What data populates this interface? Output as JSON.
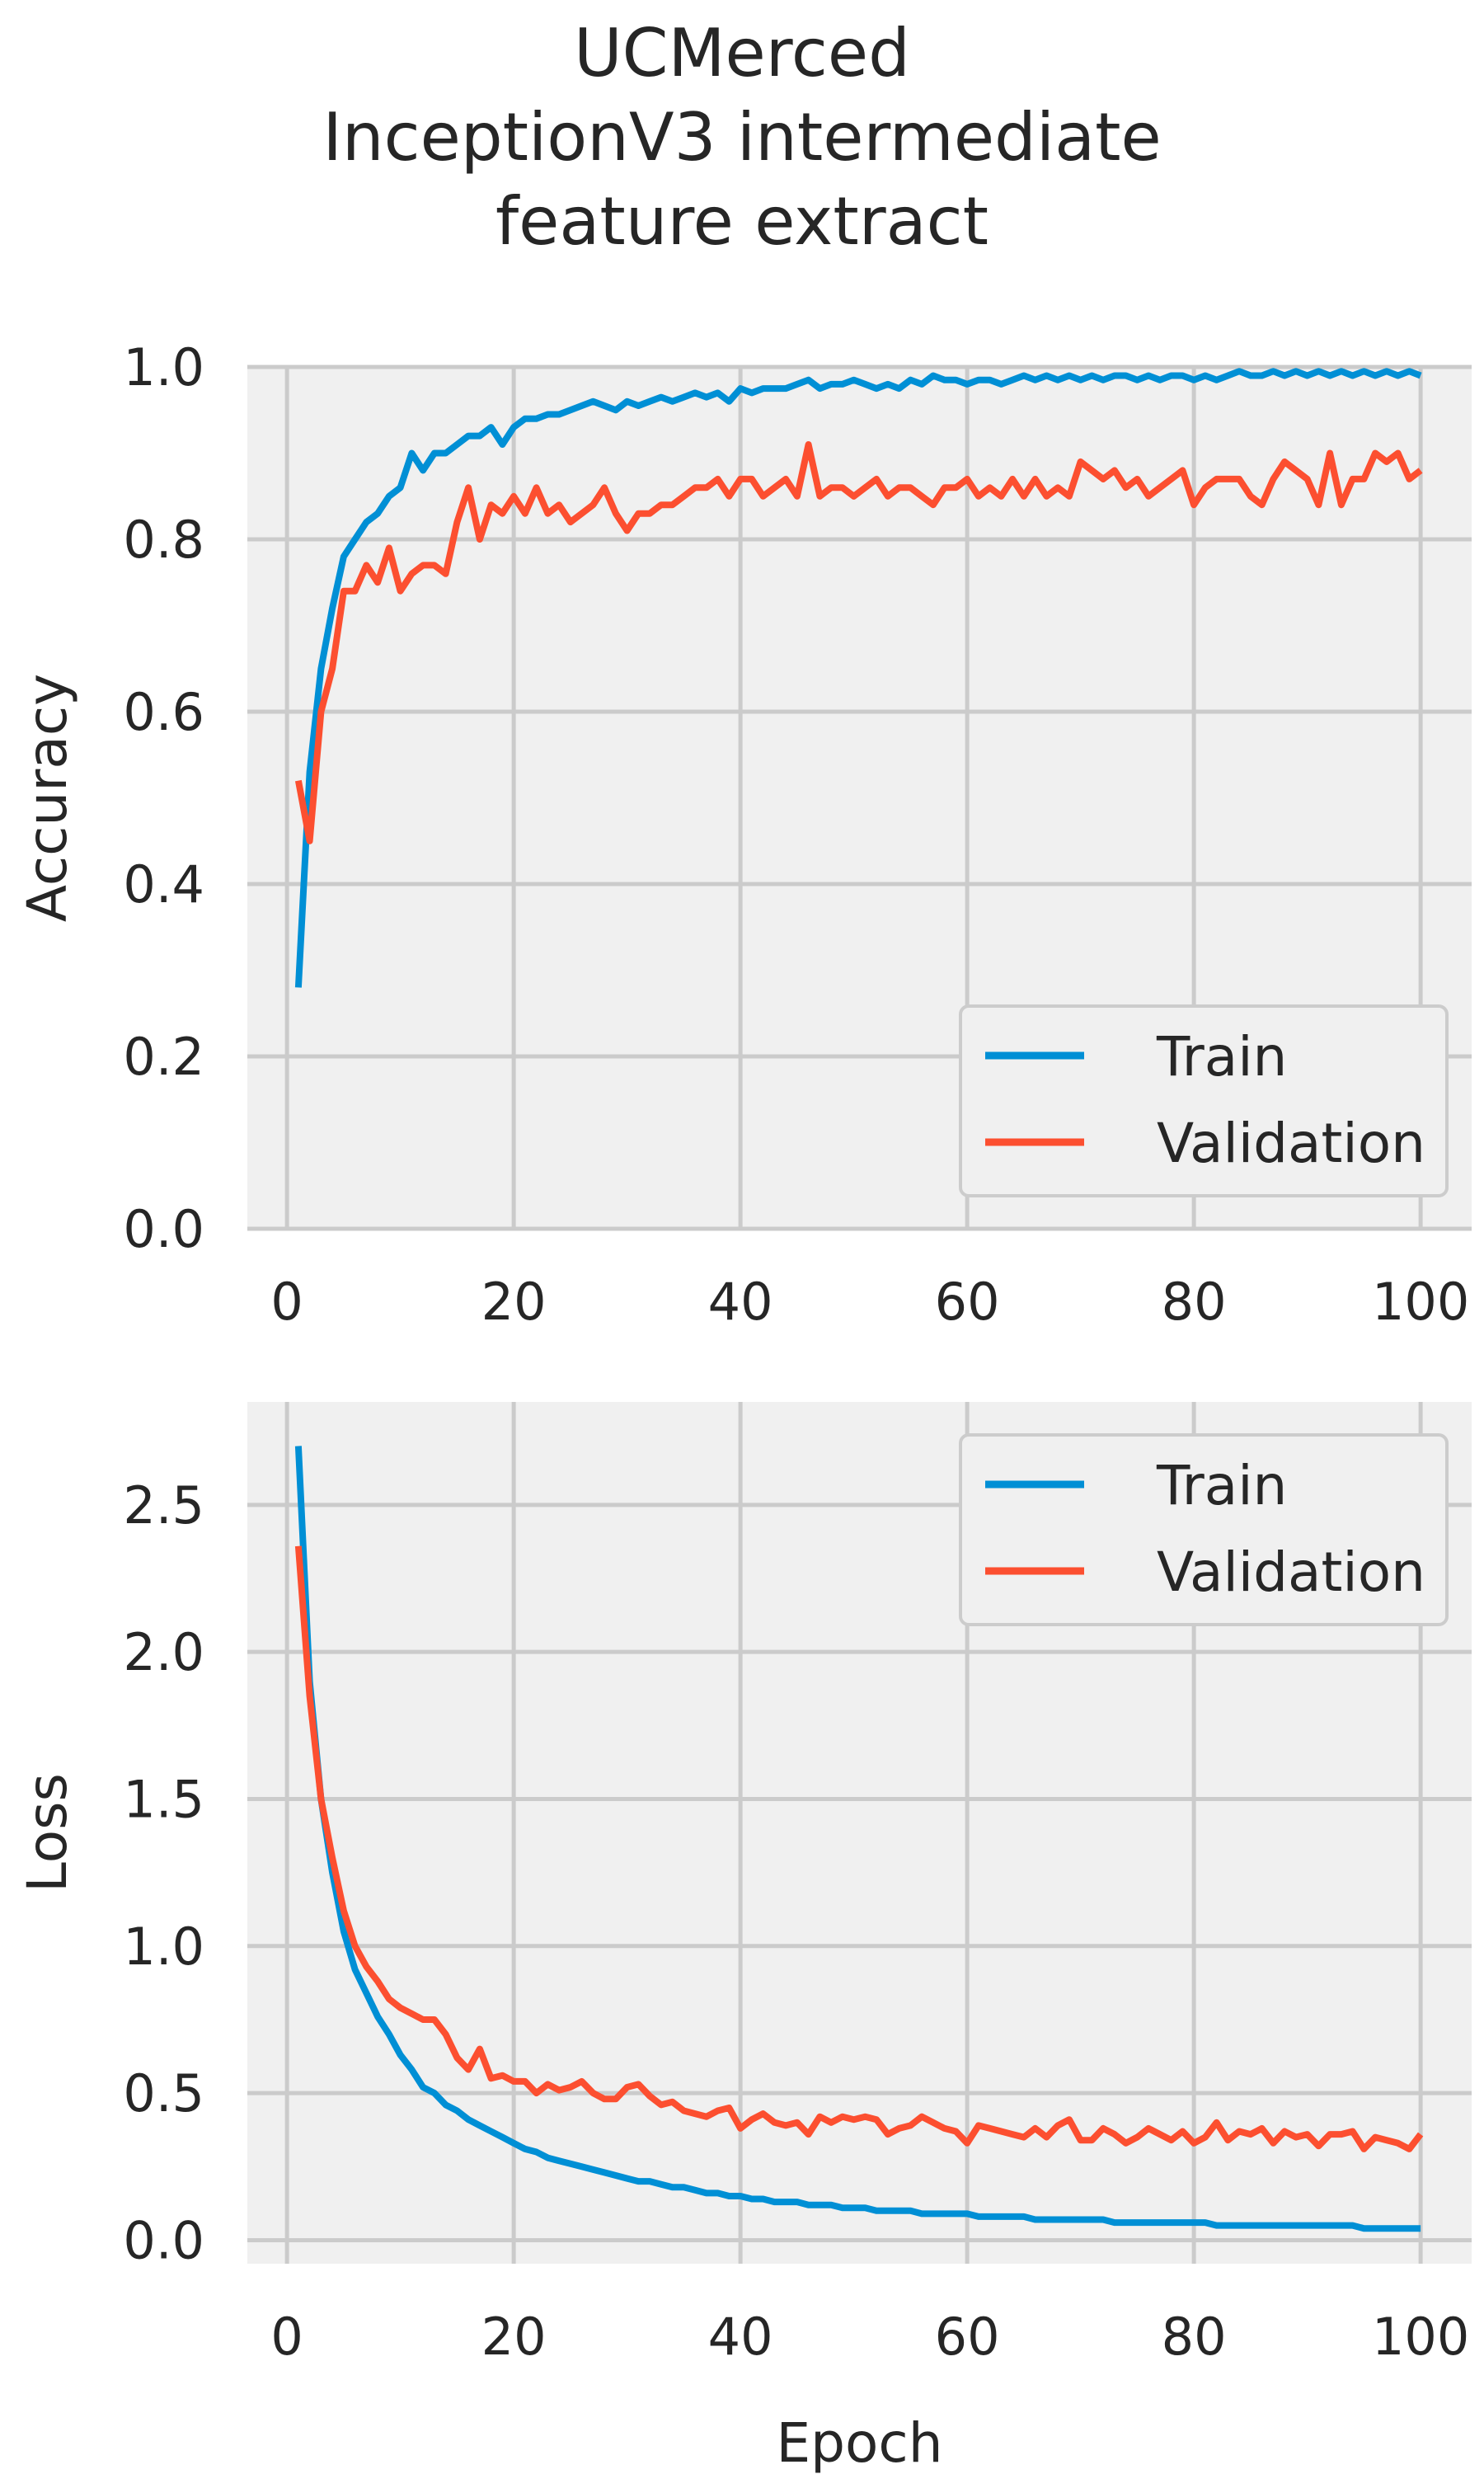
{
  "figure": {
    "title_lines": [
      "UCMerced",
      "InceptionV3 intermediate",
      "feature extract"
    ]
  },
  "chart_data": [
    {
      "type": "line",
      "title": "UCMerced InceptionV3 intermediate feature extract",
      "xlabel": "",
      "ylabel": "Accuracy",
      "xlim": [
        -3.5,
        104.5
      ],
      "ylim": [
        0.0,
        1.0
      ],
      "xticks": [
        0,
        20,
        40,
        60,
        80,
        100
      ],
      "xtick_labels": [
        "0",
        "20",
        "40",
        "60",
        "80",
        "100"
      ],
      "yticks": [
        0.0,
        0.2,
        0.4,
        0.6,
        0.8,
        1.0
      ],
      "ytick_labels": [
        "0.0",
        "0.2",
        "0.4",
        "0.6",
        "0.8",
        "1.0"
      ],
      "grid": true,
      "legend": "lower-right",
      "x": [
        1,
        2,
        3,
        4,
        5,
        6,
        7,
        8,
        9,
        10,
        11,
        12,
        13,
        14,
        15,
        16,
        17,
        18,
        19,
        20,
        21,
        22,
        23,
        24,
        25,
        26,
        27,
        28,
        29,
        30,
        31,
        32,
        33,
        34,
        35,
        36,
        37,
        38,
        39,
        40,
        41,
        42,
        43,
        44,
        45,
        46,
        47,
        48,
        49,
        50,
        51,
        52,
        53,
        54,
        55,
        56,
        57,
        58,
        59,
        60,
        61,
        62,
        63,
        64,
        65,
        66,
        67,
        68,
        69,
        70,
        71,
        72,
        73,
        74,
        75,
        76,
        77,
        78,
        79,
        80,
        81,
        82,
        83,
        84,
        85,
        86,
        87,
        88,
        89,
        90,
        91,
        92,
        93,
        94,
        95,
        96,
        97,
        98,
        99,
        100
      ],
      "series": [
        {
          "name": "Train",
          "color": "#008fd5",
          "values": [
            0.28,
            0.53,
            0.65,
            0.72,
            0.78,
            0.8,
            0.82,
            0.83,
            0.85,
            0.86,
            0.9,
            0.88,
            0.9,
            0.9,
            0.91,
            0.92,
            0.92,
            0.93,
            0.91,
            0.93,
            0.94,
            0.94,
            0.945,
            0.945,
            0.95,
            0.955,
            0.96,
            0.955,
            0.95,
            0.96,
            0.955,
            0.96,
            0.965,
            0.96,
            0.965,
            0.97,
            0.965,
            0.97,
            0.96,
            0.975,
            0.97,
            0.975,
            0.975,
            0.975,
            0.98,
            0.985,
            0.975,
            0.98,
            0.98,
            0.985,
            0.98,
            0.975,
            0.98,
            0.975,
            0.985,
            0.98,
            0.99,
            0.985,
            0.985,
            0.98,
            0.985,
            0.985,
            0.98,
            0.985,
            0.99,
            0.985,
            0.99,
            0.985,
            0.99,
            0.985,
            0.99,
            0.985,
            0.99,
            0.99,
            0.985,
            0.99,
            0.985,
            0.99,
            0.99,
            0.985,
            0.99,
            0.985,
            0.99,
            0.995,
            0.99,
            0.99,
            0.995,
            0.99,
            0.995,
            0.99,
            0.995,
            0.99,
            0.995,
            0.99,
            0.995,
            0.99,
            0.995,
            0.99,
            0.995,
            0.99
          ]
        },
        {
          "name": "Validation",
          "color": "#fc4f30",
          "values": [
            0.52,
            0.45,
            0.6,
            0.65,
            0.74,
            0.74,
            0.77,
            0.75,
            0.79,
            0.74,
            0.76,
            0.77,
            0.77,
            0.76,
            0.82,
            0.86,
            0.8,
            0.84,
            0.83,
            0.85,
            0.83,
            0.86,
            0.83,
            0.84,
            0.82,
            0.83,
            0.84,
            0.86,
            0.83,
            0.81,
            0.83,
            0.83,
            0.84,
            0.84,
            0.85,
            0.86,
            0.86,
            0.87,
            0.85,
            0.87,
            0.87,
            0.85,
            0.86,
            0.87,
            0.85,
            0.91,
            0.85,
            0.86,
            0.86,
            0.85,
            0.86,
            0.87,
            0.85,
            0.86,
            0.86,
            0.85,
            0.84,
            0.86,
            0.86,
            0.87,
            0.85,
            0.86,
            0.85,
            0.87,
            0.85,
            0.87,
            0.85,
            0.86,
            0.85,
            0.89,
            0.88,
            0.87,
            0.88,
            0.86,
            0.87,
            0.85,
            0.86,
            0.87,
            0.88,
            0.84,
            0.86,
            0.87,
            0.87,
            0.87,
            0.85,
            0.84,
            0.87,
            0.89,
            0.88,
            0.87,
            0.84,
            0.9,
            0.84,
            0.87,
            0.87,
            0.9,
            0.89,
            0.9,
            0.87,
            0.88
          ]
        }
      ]
    },
    {
      "type": "line",
      "title": "",
      "xlabel": "Epoch",
      "ylabel": "Loss",
      "xlim": [
        -3.5,
        104.5
      ],
      "ylim": [
        -0.08,
        2.85
      ],
      "xticks": [
        0,
        20,
        40,
        60,
        80,
        100
      ],
      "xtick_labels": [
        "0",
        "20",
        "40",
        "60",
        "80",
        "100"
      ],
      "yticks": [
        0.0,
        0.5,
        1.0,
        1.5,
        2.0,
        2.5
      ],
      "ytick_labels": [
        "0.0",
        "0.5",
        "1.0",
        "1.5",
        "2.0",
        "2.5"
      ],
      "grid": true,
      "legend": "upper-right",
      "x": [
        1,
        2,
        3,
        4,
        5,
        6,
        7,
        8,
        9,
        10,
        11,
        12,
        13,
        14,
        15,
        16,
        17,
        18,
        19,
        20,
        21,
        22,
        23,
        24,
        25,
        26,
        27,
        28,
        29,
        30,
        31,
        32,
        33,
        34,
        35,
        36,
        37,
        38,
        39,
        40,
        41,
        42,
        43,
        44,
        45,
        46,
        47,
        48,
        49,
        50,
        51,
        52,
        53,
        54,
        55,
        56,
        57,
        58,
        59,
        60,
        61,
        62,
        63,
        64,
        65,
        66,
        67,
        68,
        69,
        70,
        71,
        72,
        73,
        74,
        75,
        76,
        77,
        78,
        79,
        80,
        81,
        82,
        83,
        84,
        85,
        86,
        87,
        88,
        89,
        90,
        91,
        92,
        93,
        94,
        95,
        96,
        97,
        98,
        99,
        100
      ],
      "series": [
        {
          "name": "Train",
          "color": "#008fd5",
          "values": [
            2.7,
            1.9,
            1.5,
            1.25,
            1.05,
            0.92,
            0.84,
            0.76,
            0.7,
            0.63,
            0.58,
            0.52,
            0.5,
            0.46,
            0.44,
            0.41,
            0.39,
            0.37,
            0.35,
            0.33,
            0.31,
            0.3,
            0.28,
            0.27,
            0.26,
            0.25,
            0.24,
            0.23,
            0.22,
            0.21,
            0.2,
            0.2,
            0.19,
            0.18,
            0.18,
            0.17,
            0.16,
            0.16,
            0.15,
            0.15,
            0.14,
            0.14,
            0.13,
            0.13,
            0.13,
            0.12,
            0.12,
            0.12,
            0.11,
            0.11,
            0.11,
            0.1,
            0.1,
            0.1,
            0.1,
            0.09,
            0.09,
            0.09,
            0.09,
            0.09,
            0.08,
            0.08,
            0.08,
            0.08,
            0.08,
            0.07,
            0.07,
            0.07,
            0.07,
            0.07,
            0.07,
            0.07,
            0.06,
            0.06,
            0.06,
            0.06,
            0.06,
            0.06,
            0.06,
            0.06,
            0.06,
            0.05,
            0.05,
            0.05,
            0.05,
            0.05,
            0.05,
            0.05,
            0.05,
            0.05,
            0.05,
            0.05,
            0.05,
            0.05,
            0.04,
            0.04,
            0.04,
            0.04,
            0.04,
            0.04
          ]
        },
        {
          "name": "Validation",
          "color": "#fc4f30",
          "values": [
            2.36,
            1.85,
            1.5,
            1.3,
            1.12,
            1.0,
            0.93,
            0.88,
            0.82,
            0.79,
            0.77,
            0.75,
            0.75,
            0.7,
            0.62,
            0.58,
            0.65,
            0.55,
            0.56,
            0.54,
            0.54,
            0.5,
            0.53,
            0.51,
            0.52,
            0.54,
            0.5,
            0.48,
            0.48,
            0.52,
            0.53,
            0.49,
            0.46,
            0.47,
            0.44,
            0.43,
            0.42,
            0.44,
            0.45,
            0.38,
            0.41,
            0.43,
            0.4,
            0.39,
            0.4,
            0.36,
            0.42,
            0.4,
            0.42,
            0.41,
            0.42,
            0.41,
            0.36,
            0.38,
            0.39,
            0.42,
            0.4,
            0.38,
            0.37,
            0.33,
            0.39,
            0.38,
            0.37,
            0.36,
            0.35,
            0.38,
            0.35,
            0.39,
            0.41,
            0.34,
            0.34,
            0.38,
            0.36,
            0.33,
            0.35,
            0.38,
            0.36,
            0.34,
            0.37,
            0.33,
            0.35,
            0.4,
            0.34,
            0.37,
            0.36,
            0.38,
            0.33,
            0.37,
            0.35,
            0.36,
            0.32,
            0.36,
            0.36,
            0.37,
            0.31,
            0.35,
            0.34,
            0.33,
            0.31,
            0.36
          ]
        }
      ]
    }
  ]
}
